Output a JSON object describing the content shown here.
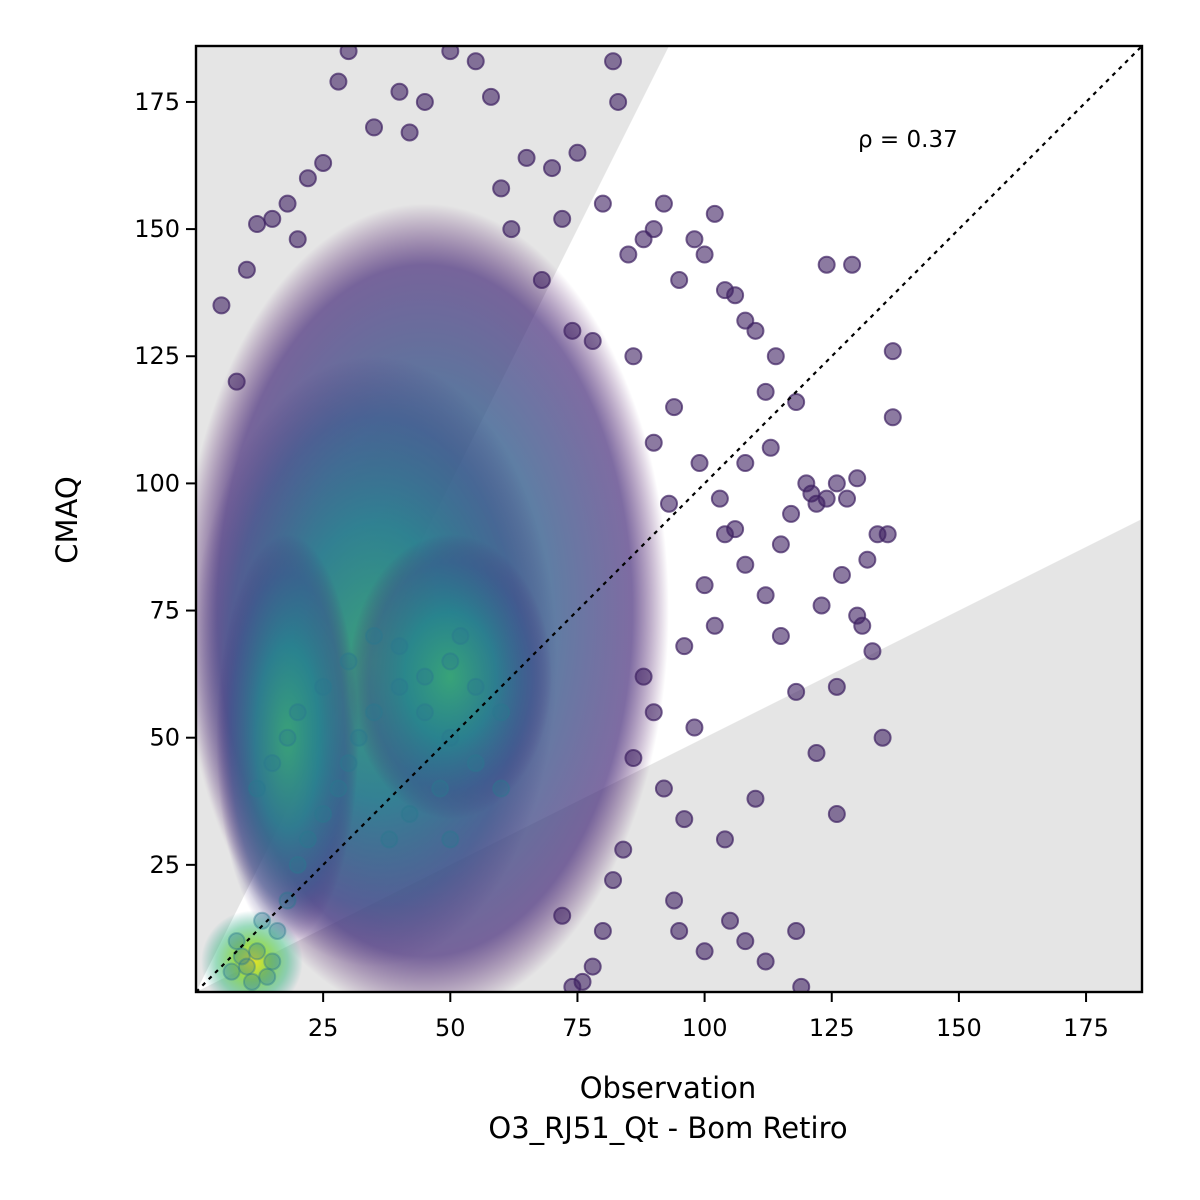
{
  "chart_data": {
    "type": "scatter",
    "title": "",
    "xlabel_line1": "Observation",
    "xlabel_line2": "O3_RJ51_Qt - Bom Retiro",
    "ylabel": "CMAQ",
    "annotation": "ρ = 0.37",
    "xlim": [
      0,
      186
    ],
    "ylim": [
      0,
      186
    ],
    "x_ticks": [
      25,
      50,
      75,
      100,
      125,
      150,
      175
    ],
    "y_ticks": [
      25,
      50,
      75,
      100,
      125,
      150,
      175
    ],
    "grid": false,
    "reference_line": "1:1 dotted",
    "colormap": "viridis",
    "point_color_sparse": "#3f2262",
    "shading_color": "#e5e5e5",
    "points_density_core": [
      [
        10,
        5
      ],
      [
        12,
        8
      ],
      [
        14,
        3
      ],
      [
        8,
        10
      ],
      [
        16,
        12
      ],
      [
        11,
        2
      ],
      [
        9,
        7
      ],
      [
        13,
        14
      ],
      [
        15,
        6
      ],
      [
        7,
        4
      ],
      [
        18,
        18
      ],
      [
        20,
        25
      ],
      [
        22,
        30
      ],
      [
        25,
        35
      ],
      [
        28,
        40
      ],
      [
        30,
        45
      ],
      [
        32,
        50
      ],
      [
        35,
        55
      ],
      [
        40,
        60
      ],
      [
        45,
        62
      ],
      [
        15,
        45
      ],
      [
        18,
        50
      ],
      [
        20,
        55
      ],
      [
        12,
        40
      ],
      [
        25,
        60
      ],
      [
        30,
        65
      ],
      [
        35,
        70
      ],
      [
        40,
        68
      ],
      [
        50,
        65
      ],
      [
        55,
        60
      ],
      [
        45,
        55
      ],
      [
        50,
        50
      ],
      [
        55,
        45
      ],
      [
        60,
        40
      ],
      [
        48,
        40
      ],
      [
        42,
        35
      ],
      [
        38,
        30
      ],
      [
        50,
        30
      ],
      [
        60,
        55
      ],
      [
        52,
        70
      ]
    ],
    "points_sparse": [
      [
        5,
        135
      ],
      [
        8,
        120
      ],
      [
        10,
        142
      ],
      [
        12,
        151
      ],
      [
        15,
        152
      ],
      [
        18,
        155
      ],
      [
        20,
        148
      ],
      [
        22,
        160
      ],
      [
        25,
        163
      ],
      [
        28,
        179
      ],
      [
        30,
        185
      ],
      [
        35,
        170
      ],
      [
        40,
        177
      ],
      [
        42,
        169
      ],
      [
        45,
        175
      ],
      [
        50,
        185
      ],
      [
        55,
        183
      ],
      [
        58,
        176
      ],
      [
        60,
        158
      ],
      [
        65,
        164
      ],
      [
        70,
        162
      ],
      [
        75,
        165
      ],
      [
        80,
        155
      ],
      [
        82,
        183
      ],
      [
        83,
        175
      ],
      [
        85,
        145
      ],
      [
        88,
        148
      ],
      [
        90,
        150
      ],
      [
        92,
        155
      ],
      [
        95,
        140
      ],
      [
        98,
        148
      ],
      [
        100,
        145
      ],
      [
        102,
        153
      ],
      [
        104,
        138
      ],
      [
        106,
        137
      ],
      [
        108,
        132
      ],
      [
        110,
        130
      ],
      [
        112,
        118
      ],
      [
        114,
        125
      ],
      [
        118,
        116
      ],
      [
        120,
        100
      ],
      [
        122,
        96
      ],
      [
        124,
        97
      ],
      [
        126,
        100
      ],
      [
        128,
        97
      ],
      [
        130,
        101
      ],
      [
        132,
        85
      ],
      [
        134,
        90
      ],
      [
        136,
        90
      ],
      [
        137,
        126
      ],
      [
        137,
        113
      ],
      [
        135,
        50
      ],
      [
        133,
        67
      ],
      [
        130,
        74
      ],
      [
        126,
        60
      ],
      [
        126,
        35
      ],
      [
        122,
        47
      ],
      [
        118,
        59
      ],
      [
        115,
        70
      ],
      [
        112,
        78
      ],
      [
        110,
        38
      ],
      [
        108,
        84
      ],
      [
        106,
        91
      ],
      [
        104,
        90
      ],
      [
        102,
        72
      ],
      [
        100,
        80
      ],
      [
        98,
        52
      ],
      [
        96,
        34
      ],
      [
        94,
        18
      ],
      [
        92,
        40
      ],
      [
        90,
        55
      ],
      [
        88,
        62
      ],
      [
        86,
        46
      ],
      [
        84,
        28
      ],
      [
        82,
        22
      ],
      [
        80,
        12
      ],
      [
        78,
        5
      ],
      [
        76,
        2
      ],
      [
        74,
        1
      ],
      [
        72,
        15
      ],
      [
        95,
        12
      ],
      [
        100,
        8
      ],
      [
        105,
        14
      ],
      [
        108,
        10
      ],
      [
        112,
        6
      ],
      [
        118,
        12
      ],
      [
        119,
        1
      ],
      [
        104,
        30
      ],
      [
        96,
        68
      ],
      [
        93,
        96
      ],
      [
        124,
        143
      ],
      [
        129,
        143
      ],
      [
        113,
        107
      ],
      [
        108,
        104
      ],
      [
        117,
        94
      ],
      [
        121,
        98
      ],
      [
        115,
        88
      ],
      [
        123,
        76
      ],
      [
        127,
        82
      ],
      [
        131,
        72
      ],
      [
        62,
        150
      ],
      [
        68,
        140
      ],
      [
        72,
        152
      ],
      [
        74,
        130
      ],
      [
        78,
        128
      ],
      [
        86,
        125
      ],
      [
        90,
        108
      ],
      [
        94,
        115
      ],
      [
        99,
        104
      ],
      [
        103,
        97
      ]
    ]
  }
}
